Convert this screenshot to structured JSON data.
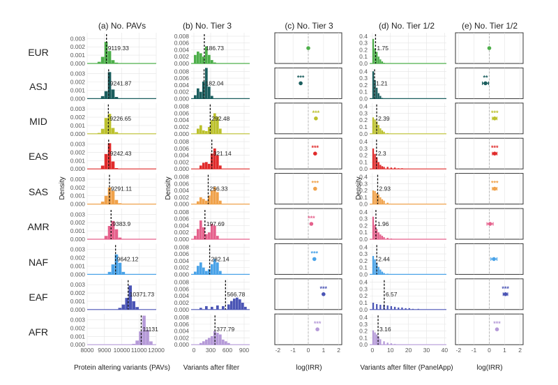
{
  "figure": {
    "ylabel_density": "Density"
  },
  "colors": {
    "EUR": "#4daf4a",
    "ASJ": "#1b5e5e",
    "MID": "#bcc12d",
    "EAS": "#e02b2b",
    "SAS": "#f0a24b",
    "AMR": "#e5618c",
    "NAF": "#4aa3e8",
    "EAF": "#4b55b5",
    "AFR": "#b59ad8"
  },
  "chart_data": [
    {
      "type": "bar",
      "title": "(a) No. PAVs",
      "xlabel": "Protein altering variants (PAVs)",
      "ylabel": "Density",
      "xlim": [
        8000,
        12000
      ],
      "x_ticks": [
        "8000",
        "9000",
        "10000",
        "11000",
        "12000"
      ],
      "y_ticks": [
        "0.000",
        "0.001",
        "0.002",
        "0.003"
      ],
      "ylim": [
        0,
        0.0037
      ],
      "bin_width": 200,
      "facets": [
        {
          "group": "EUR",
          "median": 9119.33,
          "median_label": "9119.33",
          "bins": [
            8600,
            8800,
            9000,
            9200,
            9400,
            9600
          ],
          "values": [
            0.0002,
            0.0008,
            0.0026,
            0.0015,
            0.0004,
            0.0001
          ]
        },
        {
          "group": "ASJ",
          "median": 9241.87,
          "median_label": "9241.87",
          "bins": [
            8800,
            9000,
            9200,
            9400,
            9600
          ],
          "values": [
            0.0003,
            0.0009,
            0.0032,
            0.0011,
            0.0002
          ]
        },
        {
          "group": "MID",
          "median": 9226.65,
          "median_label": "9226.65",
          "bins": [
            8600,
            8800,
            9000,
            9200,
            9400,
            9600
          ],
          "values": [
            0.0001,
            0.0006,
            0.0019,
            0.0024,
            0.0007,
            0.0002
          ]
        },
        {
          "group": "EAS",
          "median": 9242.43,
          "median_label": "9242.43",
          "bins": [
            8800,
            9000,
            9200,
            9400,
            9600
          ],
          "values": [
            0.0004,
            0.0018,
            0.0031,
            0.0009,
            0.0001
          ]
        },
        {
          "group": "SAS",
          "median": 9291.11,
          "median_label": "9291.11",
          "bins": [
            8800,
            9000,
            9200,
            9400,
            9600,
            9800
          ],
          "values": [
            0.0003,
            0.001,
            0.002,
            0.0016,
            0.0005,
            0.0001
          ]
        },
        {
          "group": "AMR",
          "median": 9383.9,
          "median_label": "9383.9",
          "bins": [
            9000,
            9200,
            9400,
            9600,
            9800
          ],
          "values": [
            0.0004,
            0.0016,
            0.0022,
            0.0012,
            0.0002
          ]
        },
        {
          "group": "NAF",
          "median": 9642.12,
          "median_label": "9642.12",
          "bins": [
            9200,
            9400,
            9600,
            9800,
            10000
          ],
          "values": [
            0.0003,
            0.0012,
            0.0024,
            0.0014,
            0.0003
          ]
        },
        {
          "group": "EAF",
          "median": 10371.73,
          "median_label": "10371.73",
          "bins": [
            9800,
            10000,
            10200,
            10400,
            10600,
            10800
          ],
          "values": [
            0.0002,
            0.0006,
            0.0014,
            0.0029,
            0.001,
            0.0003
          ]
        },
        {
          "group": "AFR",
          "median": 11131,
          "median_label": "11131",
          "bins": [
            10600,
            10800,
            11000,
            11200,
            11400,
            11600
          ],
          "values": [
            0.0001,
            0.0005,
            0.0016,
            0.0035,
            0.0018,
            0.0004
          ]
        }
      ]
    },
    {
      "type": "bar",
      "title": "(b) No. Tier 3",
      "xlabel": "Variants after filter",
      "ylabel": "Density",
      "xlim": [
        -50,
        1000
      ],
      "x_ticks": [
        "0",
        "300",
        "600",
        "900"
      ],
      "y_ticks": [
        "0.000",
        "0.002",
        "0.004",
        "0.006",
        "0.008"
      ],
      "ylim": [
        0,
        0.009
      ],
      "bin_width": 50,
      "facets": [
        {
          "group": "EUR",
          "median": 186.73,
          "median_label": "186.73",
          "bins": [
            0,
            50,
            100,
            150,
            200,
            250,
            300,
            350
          ],
          "values": [
            0.0025,
            0.0035,
            0.003,
            0.002,
            0.005,
            0.0025,
            0.001,
            0.0003
          ]
        },
        {
          "group": "ASJ",
          "median": 182.04,
          "median_label": "182.04",
          "bins": [
            0,
            50,
            100,
            150,
            200,
            250,
            300
          ],
          "values": [
            0.001,
            0.003,
            0.002,
            0.005,
            0.009,
            0.0035,
            0.0008
          ]
        },
        {
          "group": "MID",
          "median": 292.48,
          "median_label": "292.48",
          "bins": [
            50,
            100,
            150,
            200,
            250,
            300,
            350,
            400,
            450
          ],
          "values": [
            0.0015,
            0.0025,
            0.001,
            0.0008,
            0.002,
            0.004,
            0.006,
            0.005,
            0.0015
          ]
        },
        {
          "group": "EAS",
          "median": 321.14,
          "median_label": "321.14",
          "bins": [
            100,
            150,
            200,
            250,
            300,
            350,
            400,
            450
          ],
          "values": [
            0.001,
            0.0018,
            0.002,
            0.0015,
            0.0045,
            0.006,
            0.004,
            0.001
          ]
        },
        {
          "group": "SAS",
          "median": 256.33,
          "median_label": "256.33",
          "bins": [
            50,
            100,
            150,
            200,
            250,
            300,
            350,
            400,
            450
          ],
          "values": [
            0.0008,
            0.002,
            0.0015,
            0.001,
            0.0025,
            0.004,
            0.005,
            0.0035,
            0.001
          ]
        },
        {
          "group": "AMR",
          "median": 197.69,
          "median_label": "197.69",
          "bins": [
            0,
            50,
            100,
            150,
            200,
            250,
            300,
            350,
            400
          ],
          "values": [
            0.001,
            0.003,
            0.0055,
            0.0035,
            0.0015,
            0.002,
            0.0045,
            0.004,
            0.001
          ]
        },
        {
          "group": "NAF",
          "median": 282.14,
          "median_label": "282.14",
          "bins": [
            0,
            50,
            100,
            150,
            200,
            250,
            300,
            350,
            400,
            450
          ],
          "values": [
            0.0008,
            0.0025,
            0.0035,
            0.002,
            0.001,
            0.0015,
            0.003,
            0.0045,
            0.0035,
            0.001
          ]
        },
        {
          "group": "EAF",
          "median": 566.78,
          "median_label": "566.78",
          "bins": [
            100,
            200,
            300,
            400,
            500,
            600,
            650,
            700,
            750,
            800,
            850,
            900
          ],
          "values": [
            0.0005,
            0.001,
            0.0008,
            0.0012,
            0.001,
            0.0015,
            0.0025,
            0.0032,
            0.0035,
            0.003,
            0.002,
            0.0008
          ]
        },
        {
          "group": "AFR",
          "median": 377.79,
          "median_label": "377.79",
          "bins": [
            100,
            150,
            200,
            250,
            300,
            350,
            400,
            450,
            500,
            550,
            600
          ],
          "values": [
            0.0005,
            0.001,
            0.0015,
            0.002,
            0.0025,
            0.004,
            0.0035,
            0.003,
            0.0015,
            0.001,
            0.0005
          ]
        }
      ]
    },
    {
      "type": "scatter",
      "title": "(c) No. Tier 3",
      "xlabel": "log(IRR)",
      "xlim": [
        -2.2,
        2.2
      ],
      "x_ticks": [
        "-2",
        "-1",
        "0",
        "1",
        "2"
      ],
      "facets": [
        {
          "group": "EUR",
          "estimate": 0,
          "ci": [
            0,
            0
          ],
          "stars": ""
        },
        {
          "group": "ASJ",
          "estimate": -0.5,
          "ci": [
            -0.5,
            -0.5
          ],
          "stars": "***"
        },
        {
          "group": "MID",
          "estimate": 0.5,
          "ci": [
            0.5,
            0.5
          ],
          "stars": "***"
        },
        {
          "group": "EAS",
          "estimate": 0.45,
          "ci": [
            0.45,
            0.45
          ],
          "stars": "***"
        },
        {
          "group": "SAS",
          "estimate": 0.45,
          "ci": [
            0.45,
            0.45
          ],
          "stars": "***"
        },
        {
          "group": "AMR",
          "estimate": 0.2,
          "ci": [
            0.2,
            0.2
          ],
          "stars": "***"
        },
        {
          "group": "NAF",
          "estimate": 0.4,
          "ci": [
            0.4,
            0.4
          ],
          "stars": "***"
        },
        {
          "group": "EAF",
          "estimate": 1.0,
          "ci": [
            1.0,
            1.0
          ],
          "stars": "***"
        },
        {
          "group": "AFR",
          "estimate": 0.6,
          "ci": [
            0.6,
            0.6
          ],
          "stars": "***"
        }
      ]
    },
    {
      "type": "bar",
      "title": "(d) No. Tier 1/2",
      "xlabel": "Variants after filter (PanelApp)",
      "ylabel": "Density",
      "xlim": [
        -1.5,
        41
      ],
      "x_ticks": [
        "0",
        "10",
        "20",
        "30",
        "40"
      ],
      "y_ticks": [
        "0.0",
        "0.1",
        "0.2",
        "0.3",
        "0.4"
      ],
      "ylim": [
        0,
        0.45
      ],
      "bin_width": 1,
      "facets": [
        {
          "group": "EUR",
          "median": 1.75,
          "median_label": "1.75",
          "bins": [
            0,
            1,
            2,
            3,
            4,
            5,
            6
          ],
          "values": [
            0.36,
            0.22,
            0.17,
            0.1,
            0.06,
            0.03,
            0.01
          ]
        },
        {
          "group": "ASJ",
          "median": 1.21,
          "median_label": "1.21",
          "bins": [
            0,
            1,
            2,
            3,
            4,
            5
          ],
          "values": [
            0.4,
            0.27,
            0.16,
            0.08,
            0.04,
            0.01
          ]
        },
        {
          "group": "MID",
          "median": 2.39,
          "median_label": "2.39",
          "bins": [
            0,
            1,
            2,
            3,
            4,
            5,
            6,
            8
          ],
          "values": [
            0.24,
            0.21,
            0.18,
            0.13,
            0.08,
            0.05,
            0.03,
            0.01
          ]
        },
        {
          "group": "EAS",
          "median": 2.3,
          "median_label": "2.3",
          "bins": [
            0,
            1,
            2,
            3,
            4,
            5,
            6,
            8,
            10,
            12,
            14,
            16
          ],
          "values": [
            0.3,
            0.22,
            0.17,
            0.1,
            0.06,
            0.04,
            0.03,
            0.03,
            0.02,
            0.02,
            0.01,
            0.01
          ]
        },
        {
          "group": "SAS",
          "median": 2.93,
          "median_label": "2.93",
          "bins": [
            0,
            1,
            2,
            3,
            4,
            5,
            6,
            8
          ],
          "values": [
            0.2,
            0.19,
            0.16,
            0.14,
            0.1,
            0.07,
            0.05,
            0.02
          ]
        },
        {
          "group": "AMR",
          "median": 1.96,
          "median_label": "1.96",
          "bins": [
            0,
            1,
            2,
            3,
            4,
            5,
            6,
            8,
            10
          ],
          "values": [
            0.33,
            0.21,
            0.15,
            0.1,
            0.07,
            0.05,
            0.03,
            0.02,
            0.01
          ]
        },
        {
          "group": "NAF",
          "median": 2.44,
          "median_label": "2.44",
          "bins": [
            0,
            1,
            2,
            3,
            4,
            5,
            6,
            8
          ],
          "values": [
            0.27,
            0.22,
            0.17,
            0.11,
            0.07,
            0.04,
            0.02,
            0.01
          ]
        },
        {
          "group": "EAF",
          "median": 6.57,
          "median_label": "6.57",
          "bins": [
            0,
            2,
            4,
            6,
            8,
            10,
            12,
            14,
            16,
            18,
            20,
            22,
            25
          ],
          "values": [
            0.1,
            0.08,
            0.07,
            0.07,
            0.06,
            0.05,
            0.04,
            0.03,
            0.03,
            0.02,
            0.02,
            0.01,
            0.01
          ]
        },
        {
          "group": "AFR",
          "median": 3.16,
          "median_label": "3.16",
          "bins": [
            0,
            1,
            2,
            3,
            4,
            6,
            8,
            10,
            12
          ],
          "values": [
            0.21,
            0.18,
            0.15,
            0.12,
            0.08,
            0.05,
            0.03,
            0.02,
            0.01
          ]
        }
      ]
    },
    {
      "type": "scatter",
      "title": "(e) No. Tier 1/2",
      "xlabel": "log(IRR)",
      "xlim": [
        -2.2,
        2.2
      ],
      "x_ticks": [
        "-2",
        "-1",
        "0",
        "1",
        "2"
      ],
      "facets": [
        {
          "group": "EUR",
          "estimate": 0,
          "ci": [
            0,
            0
          ],
          "stars": ""
        },
        {
          "group": "ASJ",
          "estimate": -0.25,
          "ci": [
            -0.45,
            -0.05
          ],
          "stars": "**"
        },
        {
          "group": "MID",
          "estimate": 0.35,
          "ci": [
            0.2,
            0.5
          ],
          "stars": "***"
        },
        {
          "group": "EAS",
          "estimate": 0.35,
          "ci": [
            0.2,
            0.5
          ],
          "stars": "***"
        },
        {
          "group": "SAS",
          "estimate": 0.35,
          "ci": [
            0.2,
            0.5
          ],
          "stars": "***"
        },
        {
          "group": "AMR",
          "estimate": 0.05,
          "ci": [
            -0.15,
            0.25
          ],
          "stars": ""
        },
        {
          "group": "NAF",
          "estimate": 0.3,
          "ci": [
            0.1,
            0.5
          ],
          "stars": ""
        },
        {
          "group": "EAF",
          "estimate": 1.05,
          "ci": [
            0.9,
            1.2
          ],
          "stars": "***"
        },
        {
          "group": "AFR",
          "estimate": 0.5,
          "ci": [
            0.5,
            0.5
          ],
          "stars": "***"
        }
      ]
    }
  ]
}
